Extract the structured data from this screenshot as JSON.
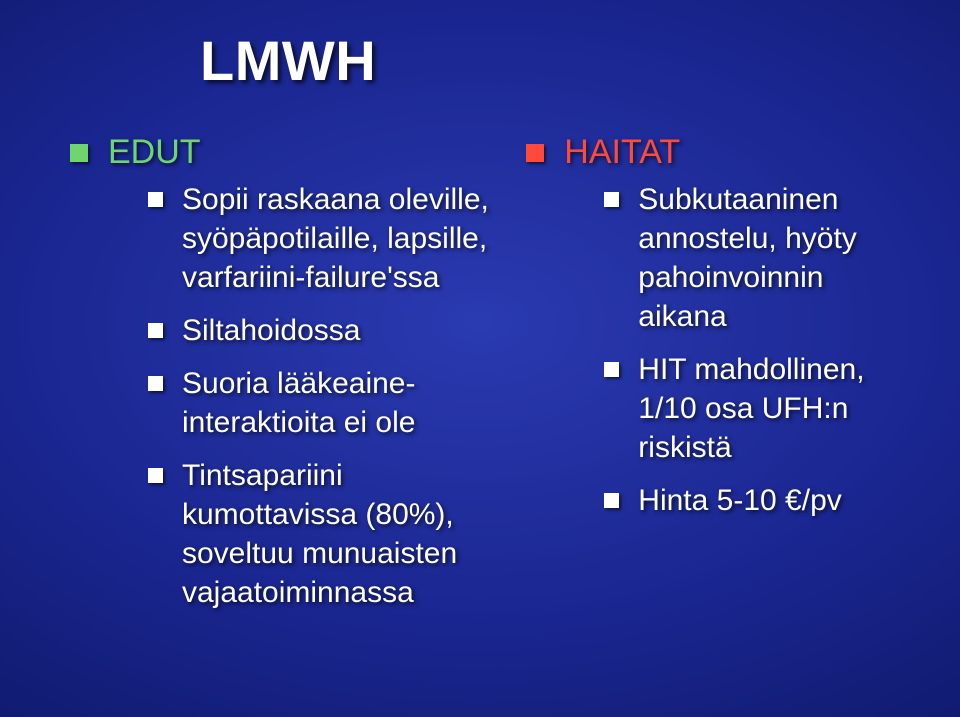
{
  "title": "LMWH",
  "left": {
    "heading": "EDUT",
    "heading_color": "#6fd66f",
    "items": [
      "Sopii raskaana oleville, syöpäpotilaille, lapsille, varfariini-failure'ssa",
      "Siltahoidossa",
      "Suoria lääkeaine-interaktioita ei ole",
      "Tintsapariini kumottavissa (80%), soveltuu munuaisten vajaatoiminnassa"
    ]
  },
  "right": {
    "heading": "HAITAT",
    "heading_color": "#ff4a3a",
    "items": [
      "Subkutaaninen annostelu, hyöty pahoinvoinnin aikana",
      "HIT mahdollinen, 1/10 osa UFH:n riskistä",
      "Hinta 5-10 €/pv"
    ]
  },
  "style": {
    "title_fontsize": 56,
    "heading_fontsize": 34,
    "item_fontsize": 30,
    "text_color": "#ffffff",
    "background_gradient": [
      "#2a3ab0",
      "#1a2690",
      "#0b1560",
      "#040830"
    ],
    "bullet_shape": "square"
  }
}
